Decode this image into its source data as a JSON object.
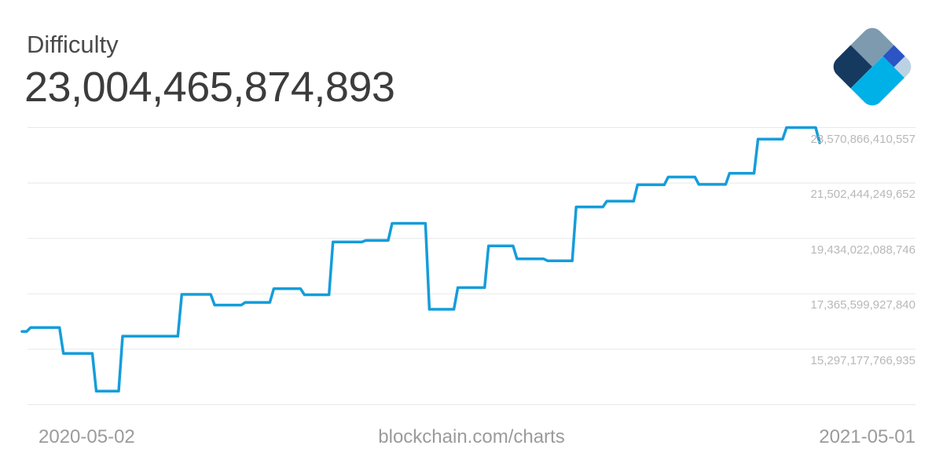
{
  "header": {
    "title": "Difficulty",
    "current_value": "23,004,465,874,893"
  },
  "logo": {
    "name": "Blockchain.com",
    "colors": {
      "top": "#7d9aaf",
      "left": "#16395f",
      "inner": "#2b55c4",
      "corner": "#bcd2e3",
      "bottom": "#00b1e7"
    }
  },
  "footer": {
    "start_date": "2020-05-02",
    "site": "blockchain.com/charts",
    "end_date": "2021-05-01"
  },
  "chart_data": {
    "type": "line",
    "style": "step",
    "title": "Difficulty",
    "ylabel": "Difficulty",
    "xlabel": "Date",
    "current_value": 23004465874893,
    "x_range": [
      "2020-05-02",
      "2021-05-01"
    ],
    "ylim": [
      13228755606030,
      23570866410557
    ],
    "grid": "horizontal",
    "legend_position": "none",
    "line_color": "#149dda",
    "grid_color": "#e8e8e8",
    "y_ticks": [
      23570866410557,
      21502444249652,
      19434022088746,
      17365599927840,
      15297177766935,
      13228755606030
    ],
    "y_tick_labels": [
      "23,570,866,410,557",
      "21,502,444,249,652",
      "19,434,022,088,746",
      "17,365,599,927,840",
      "15,297,177,766,935"
    ],
    "series": [
      {
        "name": "Difficulty",
        "points": [
          {
            "date": "2020-05-02",
            "value": 15958652328578
          },
          {
            "date": "2020-05-05",
            "value": 16104807485529
          },
          {
            "date": "2020-05-20",
            "value": 15138043247082
          },
          {
            "date": "2020-06-04",
            "value": 13732352106018
          },
          {
            "date": "2020-06-16",
            "value": 15784744305477
          },
          {
            "date": "2020-07-13",
            "value": 17345948872516
          },
          {
            "date": "2020-07-28",
            "value": 16947802333946
          },
          {
            "date": "2020-08-11",
            "value": 17046000000000
          },
          {
            "date": "2020-08-24",
            "value": 17557993035167
          },
          {
            "date": "2020-09-07",
            "value": 17331000000000
          },
          {
            "date": "2020-09-20",
            "value": 19298087186262
          },
          {
            "date": "2020-10-05",
            "value": 19360000000000
          },
          {
            "date": "2020-10-17",
            "value": 19997335994446
          },
          {
            "date": "2020-11-03",
            "value": 16787779609893
          },
          {
            "date": "2020-11-16",
            "value": 17596801059571
          },
          {
            "date": "2020-11-30",
            "value": 19156243566029
          },
          {
            "date": "2020-12-13",
            "value": 18670168558399
          },
          {
            "date": "2020-12-27",
            "value": 18599593048299
          },
          {
            "date": "2021-01-09",
            "value": 20607418304385
          },
          {
            "date": "2021-01-23",
            "value": 20823531150111
          },
          {
            "date": "2021-02-06",
            "value": 21434395961348
          },
          {
            "date": "2021-02-20",
            "value": 21724134900047
          },
          {
            "date": "2021-03-06",
            "value": 21448277452059
          },
          {
            "date": "2021-03-20",
            "value": 21865558044610
          },
          {
            "date": "2021-04-02",
            "value": 23137439666472
          },
          {
            "date": "2021-04-15",
            "value": 23570866410557
          },
          {
            "date": "2021-05-01",
            "value": 23004465874893
          }
        ]
      }
    ]
  }
}
